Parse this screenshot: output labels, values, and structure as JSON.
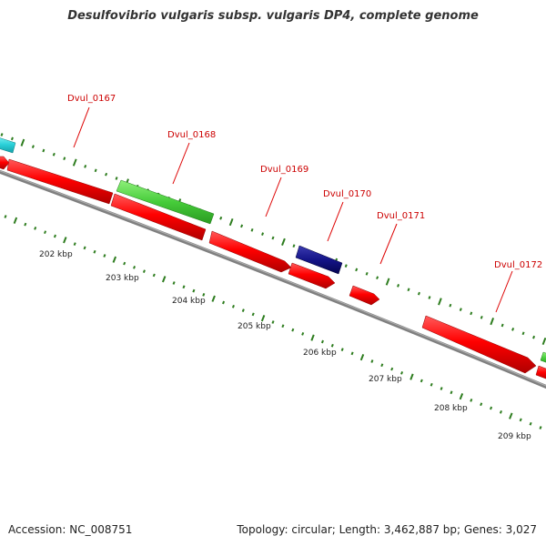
{
  "title": "Desulfovibrio vulgaris subsp. vulgaris DP4, complete genome",
  "footer": {
    "accession": "Accession: NC_008751",
    "summary": "Topology: circular; Length: 3,462,887 bp; Genes: 3,027"
  },
  "colors": {
    "backbone": "#808080",
    "label": "#cc0000",
    "ticks": "#2e7d1f",
    "leader": "#dd0000"
  },
  "genes": [
    {
      "id": "Dvul_0167",
      "label": "Dvul_0167"
    },
    {
      "id": "Dvul_0168",
      "label": "Dvul_0168"
    },
    {
      "id": "Dvul_0169",
      "label": "Dvul_0169"
    },
    {
      "id": "Dvul_0170",
      "label": "Dvul_0170"
    },
    {
      "id": "Dvul_0171",
      "label": "Dvul_0171"
    },
    {
      "id": "Dvul_0172",
      "label": "Dvul_0172"
    }
  ],
  "kbp_ticks": [
    "202 kbp",
    "203 kbp",
    "204 kbp",
    "205 kbp",
    "206 kbp",
    "207 kbp",
    "208 kbp",
    "209 kbp"
  ]
}
